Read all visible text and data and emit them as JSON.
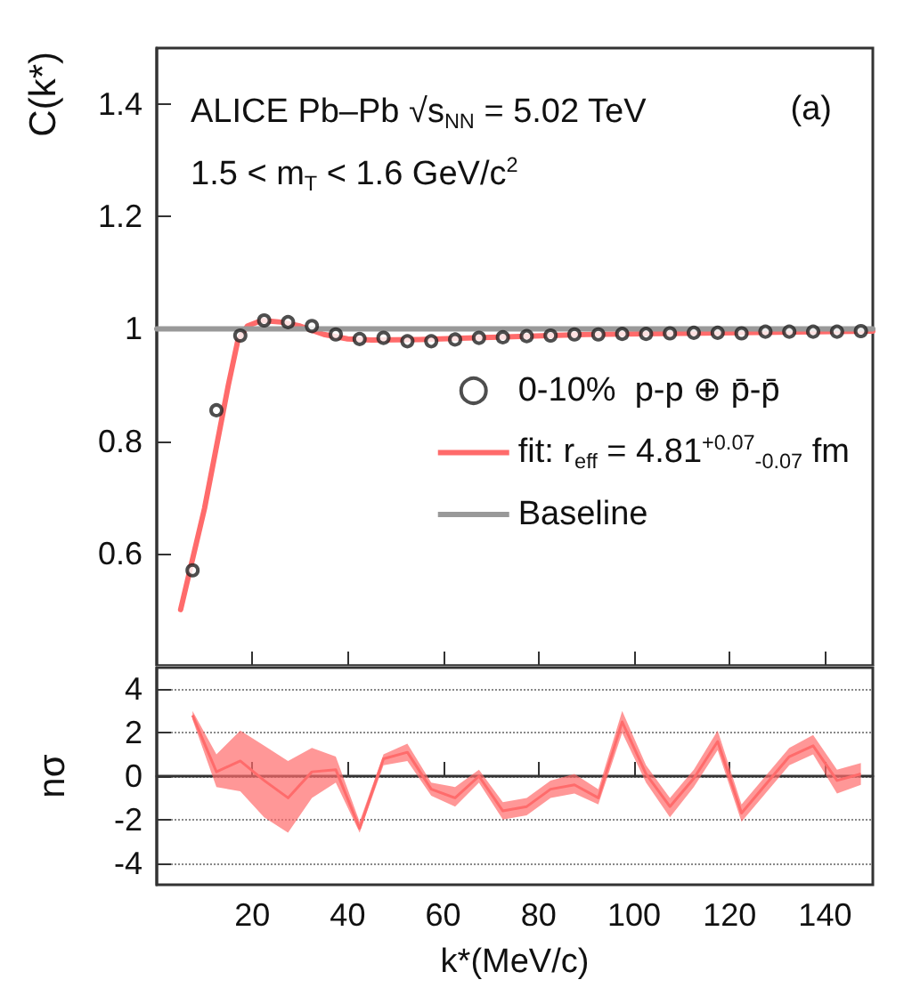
{
  "chart_data": [
    {
      "type": "scatter",
      "title": "ALICE Pb–Pb √s$_{NN}$ = 5.02 TeV",
      "subtitle": "1.5 < m$_{T}$ < 1.6 GeV/c$^{2}$",
      "ylabel": "C(k*)",
      "annotations": [
        "(a)"
      ],
      "xlim": [
        0,
        150
      ],
      "xticks": [
        20,
        40,
        60,
        80,
        100,
        120,
        140
      ],
      "ylim": [
        0.4,
        1.5
      ],
      "yticks": [
        0.6,
        0.8,
        {
          "value": 1,
          "label": "1"
        },
        1.2,
        1.4
      ],
      "tick_labels": "y",
      "legend": "right",
      "grid": false,
      "series": [
        {
          "name": "0-10%  p-p ⊕ p̄-p̄",
          "marker": "circle",
          "color": "#222222",
          "x": [
            7.5,
            12.5,
            17.5,
            22.5,
            27.5,
            32.5,
            37.5,
            42.5,
            47.5,
            52.5,
            57.5,
            62.5,
            67.5,
            72.5,
            77.5,
            82.5,
            87.5,
            92.5,
            97.5,
            102.5,
            107.5,
            112.5,
            117.5,
            122.5,
            127.5,
            132.5,
            137.5,
            142.5,
            147.5
          ],
          "values": [
            0.57,
            0.855,
            0.988,
            1.015,
            1.012,
            1.005,
            0.99,
            0.982,
            0.984,
            0.978,
            0.978,
            0.981,
            0.984,
            0.985,
            0.987,
            0.988,
            0.99,
            0.99,
            0.991,
            0.991,
            0.992,
            0.993,
            0.993,
            0.992,
            0.995,
            0.995,
            0.995,
            0.995,
            0.996
          ]
        },
        {
          "name": "fit: r$_{eff}$ = 4.81$^{+0.07}$$_{-0.07}$ fm",
          "type": "line",
          "line_style": "solid",
          "color": "#ff6b6b",
          "x": [
            5,
            10,
            15,
            17,
            19,
            22,
            26,
            30,
            35,
            40,
            45,
            55,
            70,
            90,
            110,
            130,
            150
          ],
          "values": [
            0.5,
            0.68,
            0.9,
            0.98,
            1.005,
            1.015,
            1.012,
            1.005,
            0.99,
            0.982,
            0.98,
            0.981,
            0.985,
            0.99,
            0.992,
            0.994,
            0.996
          ]
        },
        {
          "name": "Baseline",
          "type": "line",
          "line_style": "solid",
          "color": "#999999",
          "x": [
            0,
            150
          ],
          "values": [
            1,
            1
          ]
        }
      ]
    },
    {
      "type": "line",
      "xlabel": "k*(MeV/c)",
      "ylabel": "nσ",
      "xlim": [
        0,
        150
      ],
      "xticks": [
        20,
        40,
        60,
        80,
        100,
        120,
        140
      ],
      "ylim": [
        -5,
        5
      ],
      "yticks": [
        -4,
        -2,
        0,
        2,
        4
      ],
      "grid": "y",
      "series": [
        {
          "color": "#ff6b6b",
          "x": [
            7.5,
            12.5,
            17.5,
            22.5,
            27.5,
            32.5,
            37.5,
            42.5,
            47.5,
            52.5,
            57.5,
            62.5,
            67.5,
            72.5,
            77.5,
            82.5,
            87.5,
            92.5,
            97.5,
            102.5,
            107.5,
            112.5,
            117.5,
            122.5,
            127.5,
            132.5,
            137.5,
            142.5,
            147.5
          ],
          "upper": [
            3.0,
            1.0,
            2.1,
            1.4,
            0.7,
            1.3,
            0.9,
            -2.1,
            1.0,
            1.5,
            -0.3,
            -0.5,
            0.3,
            -1.2,
            -1.0,
            -0.2,
            0.1,
            -0.6,
            3.0,
            0.5,
            -1.0,
            0.3,
            2.1,
            -1.3,
            0.0,
            1.3,
            1.9,
            0.3,
            0.6
          ],
          "values": [
            2.8,
            0.2,
            0.7,
            -0.2,
            -1.0,
            0.2,
            0.3,
            -2.4,
            0.8,
            1.1,
            -0.6,
            -1.0,
            0.0,
            -1.6,
            -1.4,
            -0.6,
            -0.4,
            -1.0,
            2.5,
            0.1,
            -1.4,
            -0.1,
            1.6,
            -1.7,
            -0.4,
            0.9,
            1.4,
            -0.2,
            0.1
          ],
          "lower": [
            2.6,
            -0.5,
            -0.7,
            -1.9,
            -2.6,
            -1.0,
            -0.3,
            -2.6,
            0.5,
            0.7,
            -0.9,
            -1.4,
            -0.3,
            -2.0,
            -1.8,
            -1.0,
            -0.8,
            -1.3,
            2.0,
            -0.3,
            -1.9,
            -0.5,
            1.2,
            -2.1,
            -0.8,
            0.5,
            1.0,
            -0.8,
            -0.4
          ]
        }
      ]
    }
  ]
}
